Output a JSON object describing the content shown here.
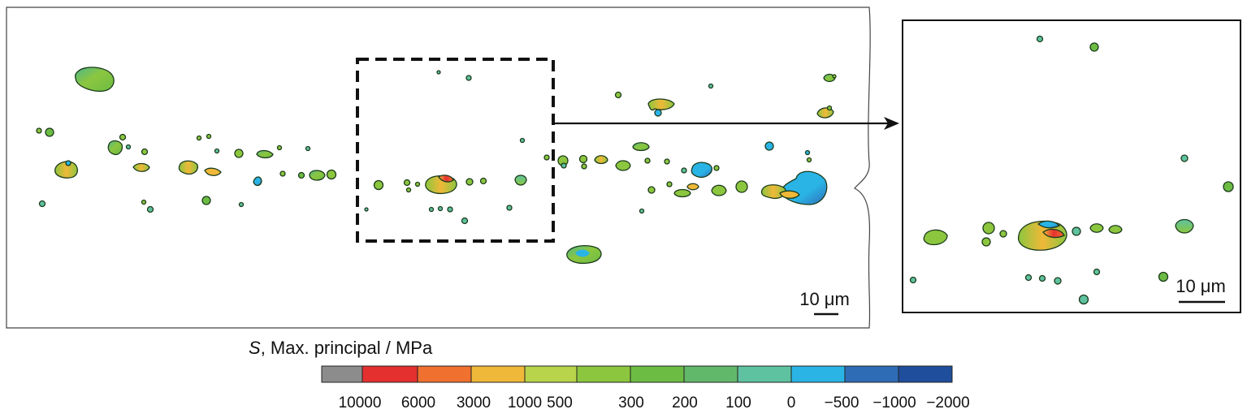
{
  "main_panel": {
    "scale_bar_label": "10 μm"
  },
  "inset_panel": {
    "scale_bar_label": "10 μm"
  },
  "colorbar": {
    "title_symbol": "S",
    "title_rest": ", Max. principal / MPa",
    "colors": [
      "#8c8c8c",
      "#e53030",
      "#f07030",
      "#f0b838",
      "#b8d44a",
      "#8cc63f",
      "#6cbc44",
      "#62b86a",
      "#5ec2a0",
      "#2ab4e6",
      "#2f6cb6",
      "#1f4e9c"
    ],
    "tick_labels": [
      "10000",
      "6000",
      "3000",
      "1000",
      "500",
      "300",
      "200",
      "100",
      "0",
      "−500",
      "−1000",
      "−2000"
    ]
  }
}
